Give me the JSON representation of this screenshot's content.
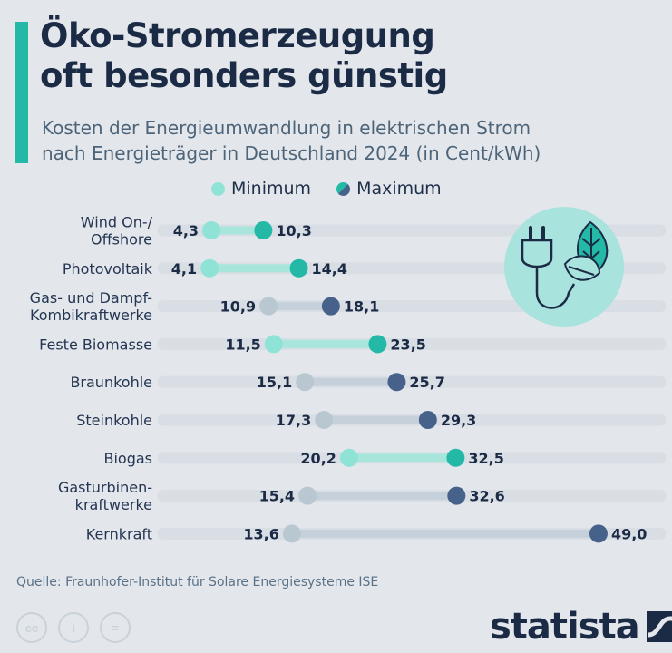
{
  "header": {
    "title_line1": "Öko-Stromerzeugung",
    "title_line2": "oft besonders günstig",
    "subtitle_line1": "Kosten der Energieumwandlung in elektrischen Strom",
    "subtitle_line2": "nach Energieträger in Deutschland 2024 (in Cent/kWh)"
  },
  "legend": {
    "min_label": "Minimum",
    "max_label": "Maximum"
  },
  "colors": {
    "renewable_min": "#8fe3d6",
    "renewable_max": "#23b9a6",
    "renewable_bar": "#a8e6dc",
    "fossil_min": "#b9c7d1",
    "fossil_max": "#47628a",
    "fossil_bar": "#c6d0da",
    "track": "#d9dee5"
  },
  "chart_data": {
    "type": "dumbbell",
    "title": "Öko-Stromerzeugung oft besonders günstig",
    "unit": "Cent/kWh",
    "xlim": [
      0,
      49.0
    ],
    "categories": [
      "Wind On-/\nOffshore",
      "Photovoltaik",
      "Gas- und Dampf-\nKombikraftwerke",
      "Feste Biomasse",
      "Braunkohle",
      "Steinkohle",
      "Biogas",
      "Gasturbinen-\nkraftwerke",
      "Kernkraft"
    ],
    "category_lines": [
      [
        "Wind On-/",
        "Offshore"
      ],
      [
        "Photovoltaik"
      ],
      [
        "Gas- und Dampf-",
        "Kombikraftwerke"
      ],
      [
        "Feste Biomasse"
      ],
      [
        "Braunkohle"
      ],
      [
        "Steinkohle"
      ],
      [
        "Biogas"
      ],
      [
        "Gasturbinen-",
        "kraftwerke"
      ],
      [
        "Kernkraft"
      ]
    ],
    "renewable": [
      true,
      true,
      false,
      true,
      false,
      false,
      true,
      false,
      false
    ],
    "series": [
      {
        "name": "Minimum",
        "values": [
          4.3,
          4.1,
          10.9,
          11.5,
          15.1,
          17.3,
          20.2,
          15.4,
          13.6
        ]
      },
      {
        "name": "Maximum",
        "values": [
          10.3,
          14.4,
          18.1,
          23.5,
          25.7,
          29.3,
          32.5,
          32.6,
          49.0
        ]
      }
    ],
    "value_labels": {
      "min": [
        "4,3",
        "4,1",
        "10,9",
        "11,5",
        "15,1",
        "17,3",
        "20,2",
        "15,4",
        "13,6"
      ],
      "max": [
        "10,3",
        "14,4",
        "18,1",
        "23,5",
        "25,7",
        "29,3",
        "32,5",
        "32,6",
        "49,0"
      ]
    }
  },
  "footer": {
    "source": "Quelle: Fraunhofer-Institut für Solare Energiesysteme ISE",
    "brand": "statista",
    "license_icons": [
      "cc",
      "i",
      "="
    ]
  }
}
